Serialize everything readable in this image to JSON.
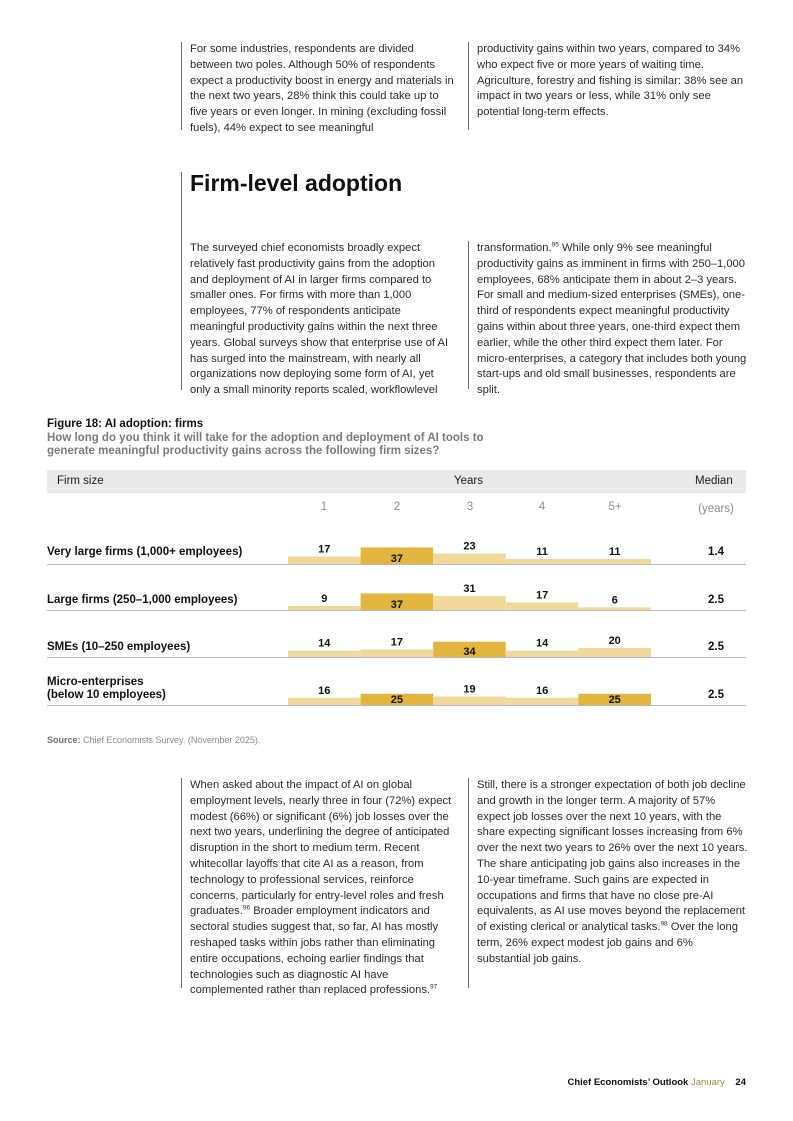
{
  "top_left_text": "For some industries, respondents are divided between two poles. Although 50% of respondents expect a productivity boost in energy and materials in the next two years, 28% think this could take up to five years or even longer. In mining (excluding fossil fuels), 44% expect to see meaningful",
  "top_right_text": "productivity gains within two years, compared to 34% who expect five or more years of waiting time. Agriculture, forestry and fishing is similar: 38% see an impact in two years or less, while 31% only see potential long-term effects.",
  "section_heading": "Firm-level adoption",
  "mid_left_text": "The surveyed chief economists broadly expect relatively fast productivity gains from the adoption and deployment of AI in larger firms compared to smaller ones. For firms with more than 1,000 employees, 77% of respondents anticipate meaningful productivity gains within the next three years. Global surveys show that enterprise use of AI has surged into the mainstream, with nearly all organizations now deploying some form of AI, yet only a small minority reports scaled, workflowlevel",
  "mid_right_pre": "transformation.",
  "mid_right_sup": "95",
  "mid_right_post": " While only 9% see meaningful productivity gains as imminent in firms with 250–1,000 employees, 68% anticipate them in about 2–3 years. For small and medium-sized enterprises (SMEs), one-third of respondents expect meaningful productivity gains within about three years, one-third expect them earlier, while the other third expect them later. For micro-enterprises, a category that includes both young start-ups and old small businesses, respondents are split.",
  "figure": {
    "title": "Figure 18: AI adoption: firms",
    "subtitle": "How long do you think it will take for the adoption and deployment of AI tools to generate meaningful productivity gains across the following firm sizes?",
    "col_firm_size": "Firm size",
    "col_years": "Years",
    "col_median": "Median",
    "median_unit": "(years)",
    "year_labels": [
      "1",
      "2",
      "3",
      "4",
      "5+"
    ]
  },
  "chart_data": {
    "type": "bar",
    "categories": [
      "1",
      "2",
      "3",
      "4",
      "5+"
    ],
    "rows": [
      {
        "label": "Very large firms (1,000+ employees)",
        "values": [
          17,
          37,
          23,
          11,
          11
        ],
        "median": "1.4"
      },
      {
        "label": "Large firms (250–1,000 employees)",
        "values": [
          9,
          37,
          31,
          17,
          6
        ],
        "median": "2.5"
      },
      {
        "label": "SMEs (10–250 employees)",
        "values": [
          14,
          17,
          34,
          14,
          20
        ],
        "median": "2.5"
      },
      {
        "label_line1": "Micro-enterprises",
        "label_line2": "(below 10 employees)",
        "values": [
          16,
          25,
          19,
          16,
          25
        ],
        "median": "2.5"
      }
    ],
    "colors": {
      "median_bin": "#e2b53e",
      "other": "#f0d89a",
      "label_dark": "#111111"
    }
  },
  "source": {
    "label": "Source:",
    "text": " Chief Economists Survey. (November 2025)."
  },
  "bottom_left_a": "When asked about the impact of AI on global employment levels, nearly three in four (72%) expect modest (66%) or significant (6%) job losses over the next two years, underlining the degree of anticipated disruption in the short to medium term. Recent whitecollar layoffs that cite AI as a reason, from technology to professional services, reinforce concerns, particularly for entry-level roles and fresh graduates.",
  "bottom_left_sup1": "96",
  "bottom_left_b": " Broader employment indicators and sectoral studies suggest that, so far, AI has mostly reshaped tasks within jobs rather than eliminating entire occupations, echoing earlier findings that technologies such as diagnostic AI have complemented rather than replaced professions.",
  "bottom_left_sup2": "97",
  "bottom_right_a": "Still, there is a stronger expectation of both job decline and growth in the longer term. A majority of 57% expect job losses over the next 10 years, with the share expecting significant losses increasing from 6% over the next two years to 26% over the next 10 years. The share anticipating job gains also increases in the 10-year timeframe. Such gains are expected in occupations and firms that have no close pre-AI equivalents, as AI use moves beyond the replacement of existing clerical or analytical tasks.",
  "bottom_right_sup": "98",
  "bottom_right_b": " Over the long term, 26% expect modest job gains and 6% substantial job gains.",
  "footer": {
    "title": "Chief Economists’ Outlook",
    "month": "January",
    "page": "24"
  }
}
